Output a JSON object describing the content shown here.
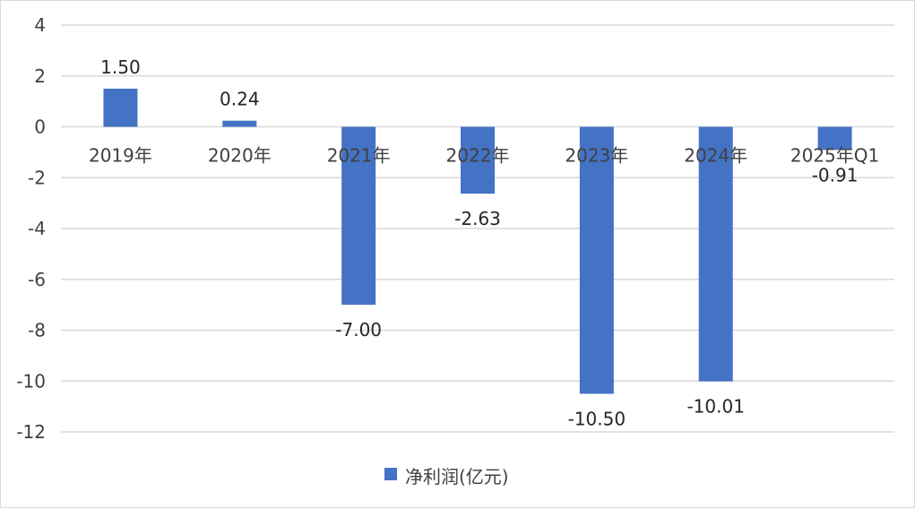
{
  "chart_data": {
    "type": "bar",
    "categories": [
      "2019年",
      "2020年",
      "2021年",
      "2022年",
      "2023年",
      "2024年",
      "2025年Q1"
    ],
    "series": [
      {
        "name": "净利润(亿元)",
        "values": [
          1.5,
          0.24,
          -7.0,
          -2.63,
          -10.5,
          -10.01,
          -0.91
        ],
        "data_labels": [
          "1.50",
          "0.24",
          "-7.00",
          "-2.63",
          "-10.50",
          "-10.01",
          "-0.91"
        ],
        "color": "#4472C4"
      }
    ],
    "ylim": [
      -12,
      4
    ],
    "yticks": [
      4,
      2,
      0,
      -2,
      -4,
      -6,
      -8,
      -10,
      -12
    ],
    "grid": true,
    "legend_position": "bottom",
    "gridline_color": "#d9d9d9",
    "text_color": "#404040"
  }
}
